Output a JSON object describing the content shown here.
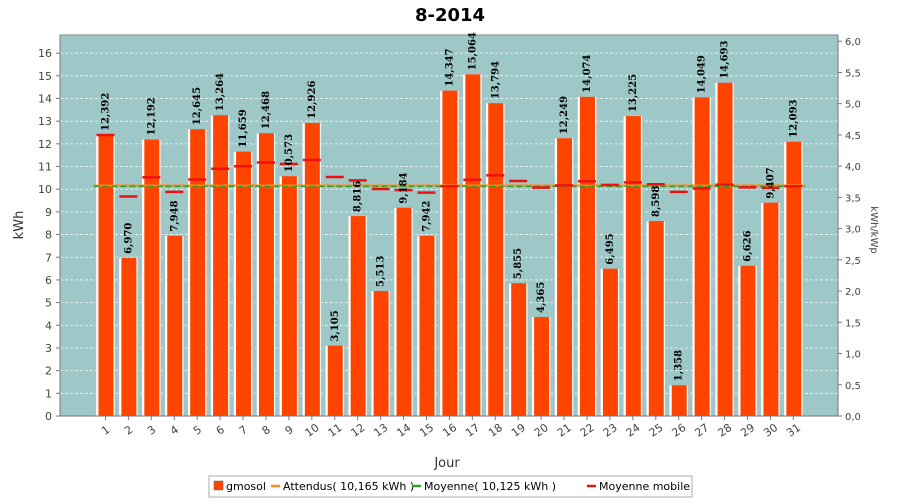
{
  "chart_data": {
    "type": "bar",
    "title": "8-2014",
    "xlabel": "Jour",
    "ylabel": "kWh",
    "ylabel_right": "kWh/kWp",
    "ylim": [
      0,
      16.8
    ],
    "ylim_right": [
      0,
      6.1
    ],
    "yticks": [
      0,
      1,
      2,
      3,
      4,
      5,
      6,
      7,
      8,
      9,
      10,
      11,
      12,
      13,
      14,
      15,
      16
    ],
    "yticks_right": [
      "0,0",
      "0,5",
      "1,0",
      "1,5",
      "2,0",
      "2,5",
      "3,0",
      "3,5",
      "4,0",
      "4,5",
      "5,0",
      "5,5",
      "6,0"
    ],
    "grid": true,
    "categories": [
      "1",
      "2",
      "3",
      "4",
      "5",
      "6",
      "7",
      "8",
      "9",
      "10",
      "11",
      "12",
      "13",
      "14",
      "15",
      "16",
      "17",
      "18",
      "19",
      "20",
      "21",
      "22",
      "23",
      "24",
      "25",
      "26",
      "27",
      "28",
      "29",
      "30",
      "31"
    ],
    "series": [
      {
        "name": "gmosol",
        "type": "bar",
        "color": "#ff4400",
        "values": [
          12.392,
          6.97,
          12.192,
          7.948,
          12.645,
          13.264,
          11.659,
          12.468,
          10.573,
          12.926,
          3.105,
          8.816,
          5.513,
          9.184,
          7.942,
          14.347,
          15.064,
          13.794,
          5.855,
          4.365,
          12.249,
          14.074,
          6.495,
          13.225,
          8.598,
          1.358,
          14.049,
          14.693,
          6.626,
          9.407,
          12.093
        ],
        "labels": [
          "12,392",
          "6,970",
          "12,192",
          "7,948",
          "12,645",
          "13,264",
          "11,659",
          "12,468",
          "10,573",
          "12,926",
          "3,105",
          "8,816",
          "5,513",
          "9,184",
          "7,942",
          "14,347",
          "15,064",
          "13,794",
          "5,855",
          "4,365",
          "12,249",
          "14,074",
          "6,495",
          "13,225",
          "8,598",
          "1,358",
          "14,049",
          "14,693",
          "6,626",
          "9,407",
          "12,093"
        ]
      },
      {
        "name": "Attendus( 10,165 kWh )",
        "type": "line",
        "color": "#ff8c1a",
        "value": 10.165
      },
      {
        "name": "Moyenne( 10,125 kWh )",
        "type": "line",
        "color": "#2e9e2e",
        "value": 10.125
      },
      {
        "name": "Moyenne mobile",
        "type": "marker",
        "color": "#ee1111",
        "values": [
          12.39,
          9.68,
          10.52,
          9.88,
          10.43,
          10.9,
          11.01,
          11.18,
          11.11,
          11.29,
          10.54,
          10.39,
          10.01,
          9.96,
          9.85,
          10.13,
          10.42,
          10.61,
          10.36,
          10.07,
          10.17,
          10.35,
          10.19,
          10.3,
          10.22,
          9.88,
          10.03,
          10.2,
          10.08,
          10.06,
          10.13
        ]
      }
    ]
  }
}
